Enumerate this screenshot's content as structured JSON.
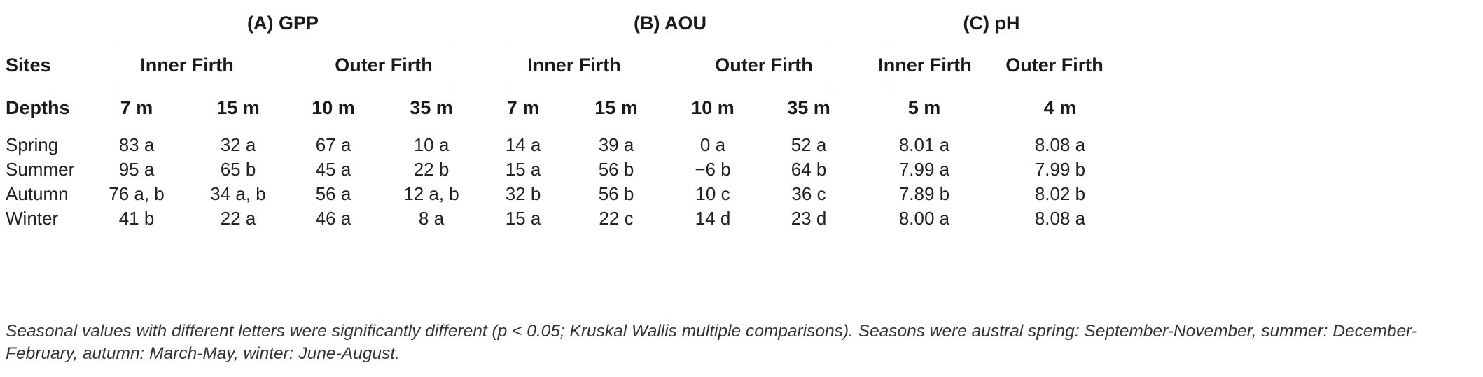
{
  "table": {
    "groups": [
      "(A) GPP",
      "(B) AOU",
      "(C) pH"
    ],
    "sites_label": "Sites",
    "depths_label": "Depths",
    "site_names": [
      "Inner Firth",
      "Outer Firth",
      "Inner Firth",
      "Outer Firth",
      "Inner Firth",
      "Outer Firth"
    ],
    "depths": [
      "7 m",
      "15 m",
      "10 m",
      "35 m",
      "7 m",
      "15 m",
      "10 m",
      "35 m",
      "5 m",
      "4 m"
    ],
    "rows": [
      {
        "season": "Spring",
        "values": [
          "83 a",
          "32 a",
          "67 a",
          "10 a",
          "14 a",
          "39 a",
          "0 a",
          "52 a",
          "8.01 a",
          "8.08 a"
        ]
      },
      {
        "season": "Summer",
        "values": [
          "95 a",
          "65 b",
          "45 a",
          "22 b",
          "15 a",
          "56 b",
          "−6 b",
          "64 b",
          "7.99 a",
          "7.99 b"
        ]
      },
      {
        "season": "Autumn",
        "values": [
          "76 a, b",
          "34 a, b",
          "56 a",
          "12 a, b",
          "32 b",
          "56 b",
          "10 c",
          "36 c",
          "7.89 b",
          "8.02 b"
        ]
      },
      {
        "season": "Winter",
        "values": [
          "41 b",
          "22 a",
          "46 a",
          "8 a",
          "15 a",
          "22 c",
          "14 d",
          "23 d",
          "8.00 a",
          "8.08 a"
        ]
      }
    ],
    "footnote": "Seasonal values with different letters were significantly different (p < 0.05; Kruskal Wallis multiple comparisons). Seasons were austral spring: September-November, summer: December-February, autumn: March-May, winter: June-August."
  }
}
